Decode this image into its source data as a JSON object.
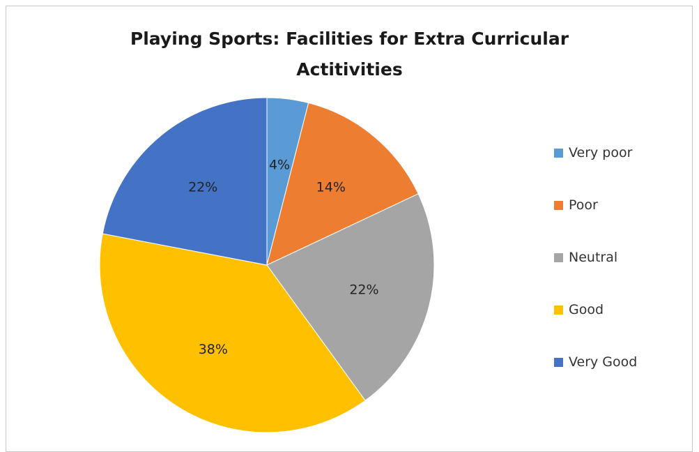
{
  "chart_data": {
    "type": "pie",
    "title_lines": [
      "Playing Sports: Facilities for Extra Curricular",
      "Actitivities"
    ],
    "slices": [
      {
        "name": "Very poor",
        "value": 4,
        "label": "4%",
        "color": "#5b9bd5"
      },
      {
        "name": "Poor",
        "value": 14,
        "label": "14%",
        "color": "#ed7d31"
      },
      {
        "name": "Neutral",
        "value": 22,
        "label": "22%",
        "color": "#a5a5a5"
      },
      {
        "name": "Good",
        "value": 38,
        "label": "38%",
        "color": "#ffc000"
      },
      {
        "name": "Very Good",
        "value": 22,
        "label": "22%",
        "color": "#4472c4"
      }
    ],
    "start_angle": "12 o'clock",
    "direction": "clockwise",
    "legend_position": "right"
  }
}
